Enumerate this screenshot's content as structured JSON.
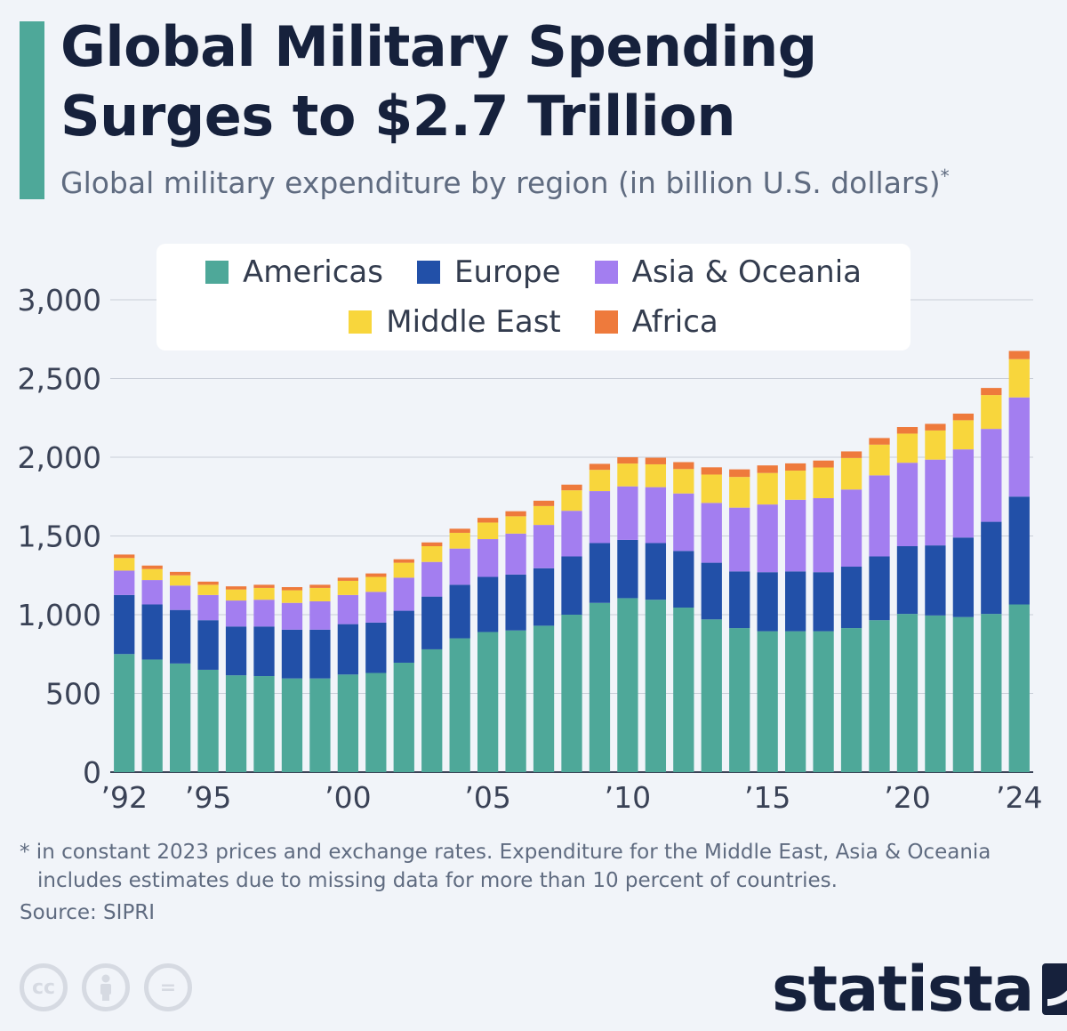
{
  "header": {
    "title_line1": "Global Military Spending",
    "title_line2": "Surges to $2.7 Trillion",
    "subtitle": "Global military expenditure by region (in billion U.S. dollars)",
    "subtitle_mark": "*"
  },
  "colors": {
    "accent": "#4ea899",
    "americas": "#4ea899",
    "europe": "#2250a8",
    "asia_oceania": "#a37ef0",
    "middle_east": "#f8d63c",
    "africa": "#ee7a3c",
    "title": "#16213c",
    "text_muted": "#5f6b80"
  },
  "chart_data": {
    "type": "bar",
    "stacked": true,
    "title": "Global military expenditure by region (in billion U.S. dollars)",
    "ylim": [
      0,
      3000
    ],
    "yticks": [
      0,
      500,
      1000,
      1500,
      2000,
      2500,
      3000
    ],
    "ytick_labels": [
      "0",
      "500",
      "1,000",
      "1,500",
      "2,000",
      "2,500",
      "3,000"
    ],
    "grid": true,
    "legend_position": "top-center",
    "categories": [
      "1992",
      "1993",
      "1994",
      "1995",
      "1996",
      "1997",
      "1998",
      "1999",
      "2000",
      "2001",
      "2002",
      "2003",
      "2004",
      "2005",
      "2006",
      "2007",
      "2008",
      "2009",
      "2010",
      "2011",
      "2012",
      "2013",
      "2014",
      "2015",
      "2016",
      "2017",
      "2018",
      "2019",
      "2020",
      "2021",
      "2022",
      "2023",
      "2024"
    ],
    "xtick_labels": [
      {
        "category": "1992",
        "label": "’92"
      },
      {
        "category": "1995",
        "label": "’95"
      },
      {
        "category": "2000",
        "label": "’00"
      },
      {
        "category": "2005",
        "label": "’05"
      },
      {
        "category": "2010",
        "label": "’10"
      },
      {
        "category": "2015",
        "label": "’15"
      },
      {
        "category": "2020",
        "label": "’20"
      },
      {
        "category": "2024",
        "label": "’24"
      }
    ],
    "series": [
      {
        "name": "Americas",
        "color": "#4ea899",
        "values": [
          750,
          715,
          690,
          650,
          615,
          610,
          595,
          595,
          620,
          630,
          695,
          780,
          850,
          890,
          900,
          930,
          1000,
          1075,
          1105,
          1095,
          1045,
          970,
          915,
          895,
          895,
          895,
          915,
          965,
          1005,
          995,
          985,
          1005,
          1065
        ]
      },
      {
        "name": "Europe",
        "color": "#2250a8",
        "values": [
          375,
          350,
          340,
          315,
          310,
          315,
          310,
          310,
          320,
          320,
          330,
          335,
          340,
          350,
          355,
          365,
          370,
          380,
          370,
          360,
          360,
          360,
          360,
          375,
          380,
          375,
          390,
          405,
          430,
          445,
          505,
          585,
          685
        ]
      },
      {
        "name": "Asia & Oceania",
        "color": "#a37ef0",
        "values": [
          155,
          155,
          155,
          160,
          165,
          170,
          170,
          180,
          185,
          195,
          210,
          220,
          230,
          240,
          260,
          275,
          290,
          330,
          340,
          355,
          365,
          380,
          405,
          430,
          455,
          470,
          490,
          515,
          530,
          545,
          560,
          590,
          630
        ]
      },
      {
        "name": "Middle East",
        "color": "#f8d63c",
        "values": [
          80,
          70,
          65,
          65,
          70,
          75,
          80,
          85,
          90,
          95,
          95,
          100,
          100,
          105,
          110,
          120,
          130,
          135,
          145,
          145,
          155,
          180,
          195,
          200,
          185,
          195,
          200,
          195,
          185,
          185,
          185,
          215,
          243
        ]
      },
      {
        "name": "Africa",
        "color": "#ee7a3c",
        "values": [
          22,
          22,
          22,
          20,
          20,
          20,
          20,
          20,
          20,
          22,
          22,
          24,
          26,
          30,
          32,
          34,
          36,
          38,
          40,
          42,
          44,
          46,
          48,
          48,
          46,
          44,
          42,
          42,
          42,
          42,
          42,
          45,
          52
        ]
      }
    ]
  },
  "footnote": {
    "line1": "* in constant 2023 prices and exchange rates. Expenditure for the Middle East, Asia & Oceania",
    "line2": "includes estimates due to missing data for more than 10 percent of countries."
  },
  "source": "Source: SIPRI",
  "license_icons": [
    "cc-icon",
    "attribution-icon",
    "no-derivatives-icon"
  ],
  "license_cc_text": "cc",
  "license_nd_text": "=",
  "brand": {
    "name": "statista",
    "logo_icon": "statista-logo-icon"
  }
}
